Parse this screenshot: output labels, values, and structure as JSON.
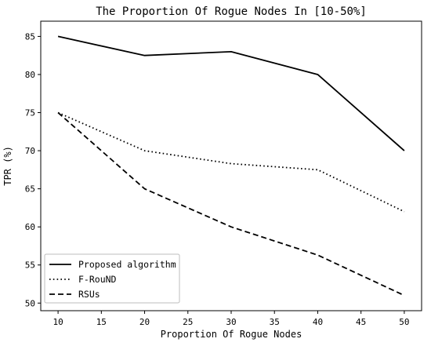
{
  "chart_data": {
    "type": "line",
    "title": "The Proportion Of Rogue Nodes In [10-50%]",
    "xlabel": "Proportion Of Rogue Nodes",
    "ylabel": "TPR (%)",
    "xlim": [
      8,
      52
    ],
    "ylim": [
      49,
      87
    ],
    "xticks": [
      10,
      15,
      20,
      25,
      30,
      35,
      40,
      45,
      50
    ],
    "yticks": [
      50,
      55,
      60,
      65,
      70,
      75,
      80,
      85
    ],
    "x": [
      10,
      20,
      30,
      40,
      50
    ],
    "series": [
      {
        "name": "Proposed algorithm",
        "style": "solid",
        "values": [
          85,
          82.5,
          83,
          80,
          70
        ]
      },
      {
        "name": "F-RouND",
        "style": "dotted",
        "values": [
          75,
          70,
          68.3,
          67.5,
          62
        ]
      },
      {
        "name": "RSUs",
        "style": "dashed",
        "values": [
          75,
          65,
          60,
          56.3,
          51
        ]
      }
    ],
    "grid": false,
    "legend_position": "lower-left",
    "colors": {
      "line": "#000000",
      "frame": "#000000",
      "background": "#ffffff"
    }
  }
}
